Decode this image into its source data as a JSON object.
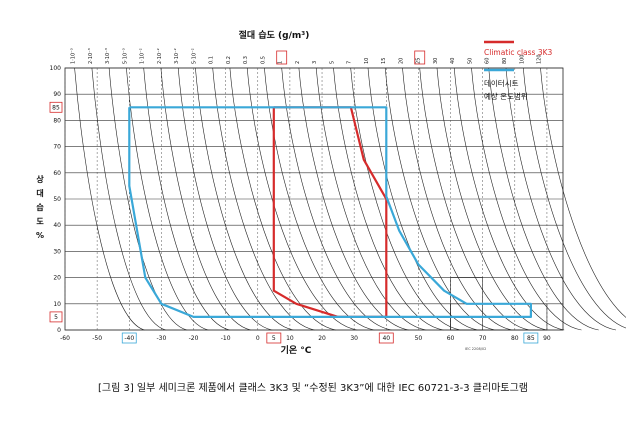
{
  "chart_data": {
    "type": "line",
    "title": "절대 습도 (g/m³)",
    "xlabel": "기온 °C",
    "ylabel": [
      "상",
      "대",
      "습",
      "도",
      "%"
    ],
    "xlim": [
      -60,
      95
    ],
    "ylim": [
      0,
      100
    ],
    "x_ticks": [
      -60,
      -50,
      -40,
      -30,
      -20,
      -10,
      0,
      10,
      20,
      30,
      40,
      50,
      60,
      70,
      80,
      90
    ],
    "x_tick_labels": [
      "-60",
      "-50",
      "-40",
      "-30",
      "-20",
      "-10",
      "0",
      "10",
      "20",
      "30",
      "40",
      "50",
      "60",
      "70",
      "80",
      "90"
    ],
    "y_ticks": [
      0,
      10,
      20,
      30,
      40,
      50,
      60,
      70,
      80,
      90,
      100
    ],
    "y_tick_labels": [
      "0",
      "10",
      "20",
      "30",
      "40",
      "50",
      "60",
      "70",
      "80",
      "90",
      "100"
    ],
    "x_highlight": [
      {
        "value": -40,
        "label": "-40",
        "color": "#3aa8d8"
      },
      {
        "value": 5,
        "label": "5",
        "color": "#d62b2b"
      },
      {
        "value": 40,
        "label": "40",
        "color": "#d62b2b"
      },
      {
        "value": 85,
        "label": "85",
        "color": "#3aa8d8"
      }
    ],
    "y_highlight": [
      {
        "value": 85,
        "label": "85",
        "color": "#d62b2b"
      },
      {
        "value": 5,
        "label": "5",
        "color": "#d62b2b"
      }
    ],
    "abs_humidity_ticks": [
      "1·10⁻³",
      "2·10⁻³",
      "3·10⁻³",
      "5·10⁻³",
      "1·10⁻²",
      "2·10⁻²",
      "3·10⁻²",
      "5·10⁻²",
      "0.1",
      "0.2",
      "0.3",
      "0.5",
      "1",
      "2",
      "3",
      "5",
      "7",
      "10",
      "15",
      "20",
      "25",
      "30",
      "40",
      "50",
      "60",
      "80",
      "100",
      "120"
    ],
    "abs_humidity_highlight": [
      {
        "label": "1",
        "color": "#d62b2b"
      },
      {
        "label": "25",
        "color": "#d62b2b"
      }
    ],
    "legend_position": "top-right",
    "series": [
      {
        "name": "Climatic class 3K3",
        "color": "#d62b2b",
        "points": [
          [
            5,
            85
          ],
          [
            29,
            85
          ],
          [
            33,
            65
          ],
          [
            40,
            50
          ],
          [
            40,
            5
          ],
          [
            25,
            5
          ],
          [
            12,
            10
          ],
          [
            5,
            15
          ],
          [
            5,
            85
          ]
        ]
      },
      {
        "name": "데이터시트\n예상 온도범위",
        "color": "#3aa8d8",
        "points": [
          [
            -40,
            85
          ],
          [
            40,
            85
          ],
          [
            40,
            51
          ],
          [
            44,
            38
          ],
          [
            50,
            25
          ],
          [
            58,
            15
          ],
          [
            65,
            10
          ],
          [
            85,
            10
          ],
          [
            85,
            5
          ],
          [
            -20,
            5
          ],
          [
            -30,
            10
          ],
          [
            -35,
            20
          ],
          [
            -40,
            55
          ],
          [
            -40,
            85
          ]
        ]
      }
    ],
    "note": "IEC 2208/02"
  },
  "caption": "[그림 3] 일부 세미크론 제품에서 클래스 3K3 및 “수정된 3K3”에 대한 IEC 60721-3-3 클리마토그램",
  "colors": {
    "red": "#d62b2b",
    "blue": "#3aa8d8",
    "grid": "#222222"
  }
}
